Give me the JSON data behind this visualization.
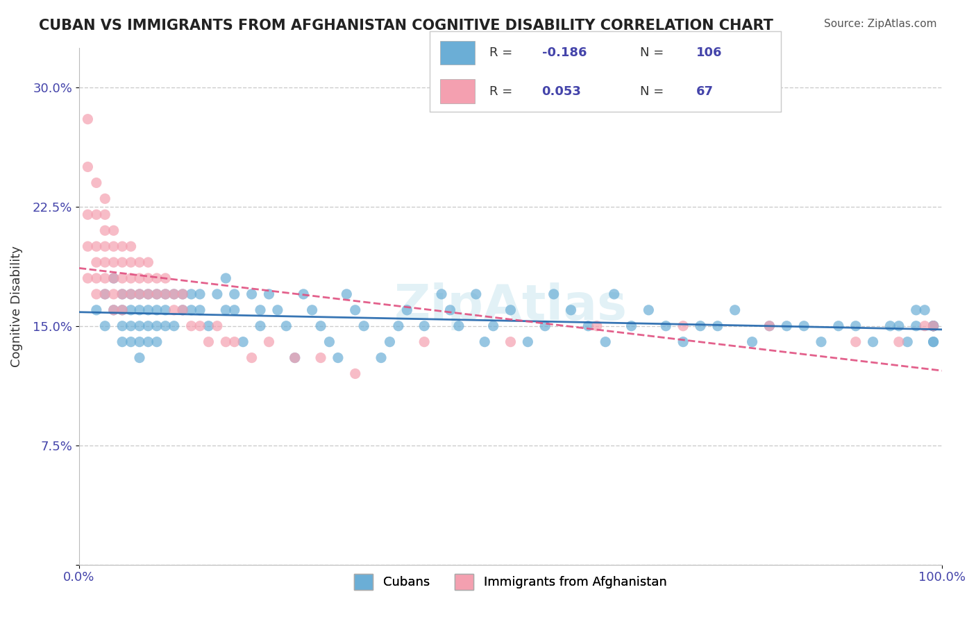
{
  "title": "CUBAN VS IMMIGRANTS FROM AFGHANISTAN COGNITIVE DISABILITY CORRELATION CHART",
  "source": "Source: ZipAtlas.com",
  "xlabel": "",
  "ylabel": "Cognitive Disability",
  "xlim": [
    0,
    100
  ],
  "ylim": [
    0,
    32.5
  ],
  "yticks": [
    0,
    7.5,
    15.0,
    22.5,
    30.0
  ],
  "yticklabels": [
    "",
    "7.5%",
    "15.0%",
    "22.5%",
    "30.0%"
  ],
  "xticks": [
    0,
    100
  ],
  "xticklabels": [
    "0.0%",
    "100.0%"
  ],
  "legend_r1": "R = -0.186",
  "legend_n1": "N = 106",
  "legend_r2": "R =  0.053",
  "legend_n2": "N =  67",
  "legend_label1": "Cubans",
  "legend_label2": "Immigrants from Afghanistan",
  "blue_color": "#6baed6",
  "pink_color": "#f4a0b0",
  "blue_line_color": "#2166ac",
  "pink_line_color": "#e05080",
  "title_color": "#222222",
  "axis_color": "#4444aa",
  "r_value_1": -0.186,
  "n_value_1": 106,
  "r_value_2": 0.053,
  "n_value_2": 67,
  "watermark": "ZipAtlas",
  "background_color": "#ffffff",
  "grid_color": "#cccccc",
  "cubans_x": [
    2,
    3,
    3,
    4,
    4,
    5,
    5,
    5,
    5,
    6,
    6,
    6,
    6,
    7,
    7,
    7,
    7,
    7,
    8,
    8,
    8,
    8,
    9,
    9,
    9,
    9,
    10,
    10,
    10,
    11,
    11,
    12,
    12,
    13,
    13,
    14,
    14,
    15,
    16,
    17,
    17,
    18,
    18,
    19,
    20,
    21,
    21,
    22,
    23,
    24,
    25,
    26,
    27,
    28,
    29,
    30,
    31,
    32,
    33,
    35,
    36,
    37,
    38,
    40,
    42,
    43,
    44,
    46,
    47,
    48,
    50,
    52,
    54,
    55,
    57,
    59,
    61,
    62,
    64,
    66,
    68,
    70,
    72,
    74,
    76,
    78,
    80,
    82,
    84,
    86,
    88,
    90,
    92,
    94,
    95,
    96,
    97,
    97,
    98,
    99,
    99,
    99,
    99,
    99,
    99,
    99
  ],
  "cubans_y": [
    16,
    17,
    15,
    18,
    16,
    17,
    16,
    15,
    14,
    16,
    17,
    15,
    14,
    17,
    16,
    15,
    14,
    13,
    17,
    16,
    15,
    14,
    17,
    16,
    15,
    14,
    17,
    16,
    15,
    17,
    15,
    17,
    16,
    17,
    16,
    17,
    16,
    15,
    17,
    18,
    16,
    17,
    16,
    14,
    17,
    16,
    15,
    17,
    16,
    15,
    13,
    17,
    16,
    15,
    14,
    13,
    17,
    16,
    15,
    13,
    14,
    15,
    16,
    15,
    17,
    16,
    15,
    17,
    14,
    15,
    16,
    14,
    15,
    17,
    16,
    15,
    14,
    17,
    15,
    16,
    15,
    14,
    15,
    15,
    16,
    14,
    15,
    15,
    15,
    14,
    15,
    15,
    14,
    15,
    15,
    14,
    16,
    15,
    16,
    15,
    15,
    14,
    15,
    15,
    14,
    15
  ],
  "afghan_x": [
    1,
    1,
    1,
    1,
    1,
    2,
    2,
    2,
    2,
    2,
    2,
    3,
    3,
    3,
    3,
    3,
    3,
    3,
    4,
    4,
    4,
    4,
    4,
    4,
    5,
    5,
    5,
    5,
    5,
    6,
    6,
    6,
    6,
    7,
    7,
    7,
    8,
    8,
    8,
    9,
    9,
    10,
    10,
    11,
    11,
    12,
    12,
    13,
    14,
    15,
    16,
    17,
    18,
    20,
    22,
    25,
    28,
    32,
    40,
    50,
    60,
    70,
    80,
    90,
    95,
    98,
    99
  ],
  "afghan_y": [
    28,
    25,
    22,
    20,
    18,
    24,
    22,
    20,
    19,
    18,
    17,
    23,
    22,
    21,
    20,
    19,
    18,
    17,
    21,
    20,
    19,
    18,
    17,
    16,
    20,
    19,
    18,
    17,
    16,
    20,
    19,
    18,
    17,
    19,
    18,
    17,
    19,
    18,
    17,
    18,
    17,
    18,
    17,
    17,
    16,
    17,
    16,
    15,
    15,
    14,
    15,
    14,
    14,
    13,
    14,
    13,
    13,
    12,
    14,
    14,
    15,
    15,
    15,
    14,
    14,
    15,
    15
  ]
}
